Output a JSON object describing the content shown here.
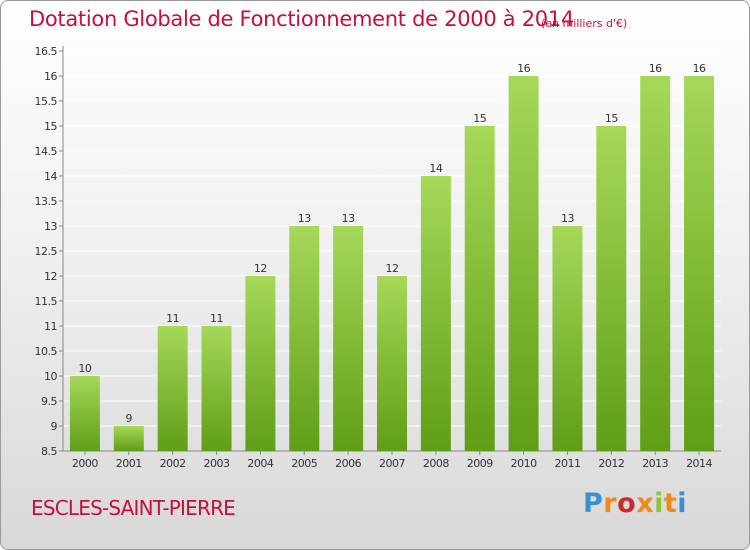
{
  "header": {
    "title": "Dotation Globale de Fonctionnement de 2000 à 2014",
    "unit": "(en milliers d'€)"
  },
  "footer": {
    "commune": "ESCLES-SAINT-PIERRE",
    "logo": "Proxiti"
  },
  "colors": {
    "title": "#c4103c",
    "bar_top": "#a6d85a",
    "bar_bottom": "#5f9e16",
    "gridline": "#ffffff"
  },
  "chart_data": {
    "type": "bar",
    "title": "Dotation Globale de Fonctionnement de 2000 à 2014",
    "xlabel": "",
    "ylabel": "",
    "categories": [
      "2000",
      "2001",
      "2002",
      "2003",
      "2004",
      "2005",
      "2006",
      "2007",
      "2008",
      "2009",
      "2010",
      "2011",
      "2012",
      "2013",
      "2014"
    ],
    "values": [
      10,
      9,
      11,
      11,
      12,
      13,
      13,
      12,
      14,
      15,
      16,
      13,
      15,
      16,
      16
    ],
    "data_labels": [
      "10",
      "9",
      "11",
      "11",
      "12",
      "13",
      "13",
      "12",
      "14",
      "15",
      "16",
      "13",
      "15",
      "16",
      "16"
    ],
    "ylim": [
      8.5,
      16.5
    ],
    "yticks": [
      "8.5",
      "9",
      "9.5",
      "10",
      "10.5",
      "11",
      "11.5",
      "12",
      "12.5",
      "13",
      "13.5",
      "14",
      "14.5",
      "15",
      "15.5",
      "16",
      "16.5"
    ],
    "grid": true,
    "legend": "none"
  }
}
